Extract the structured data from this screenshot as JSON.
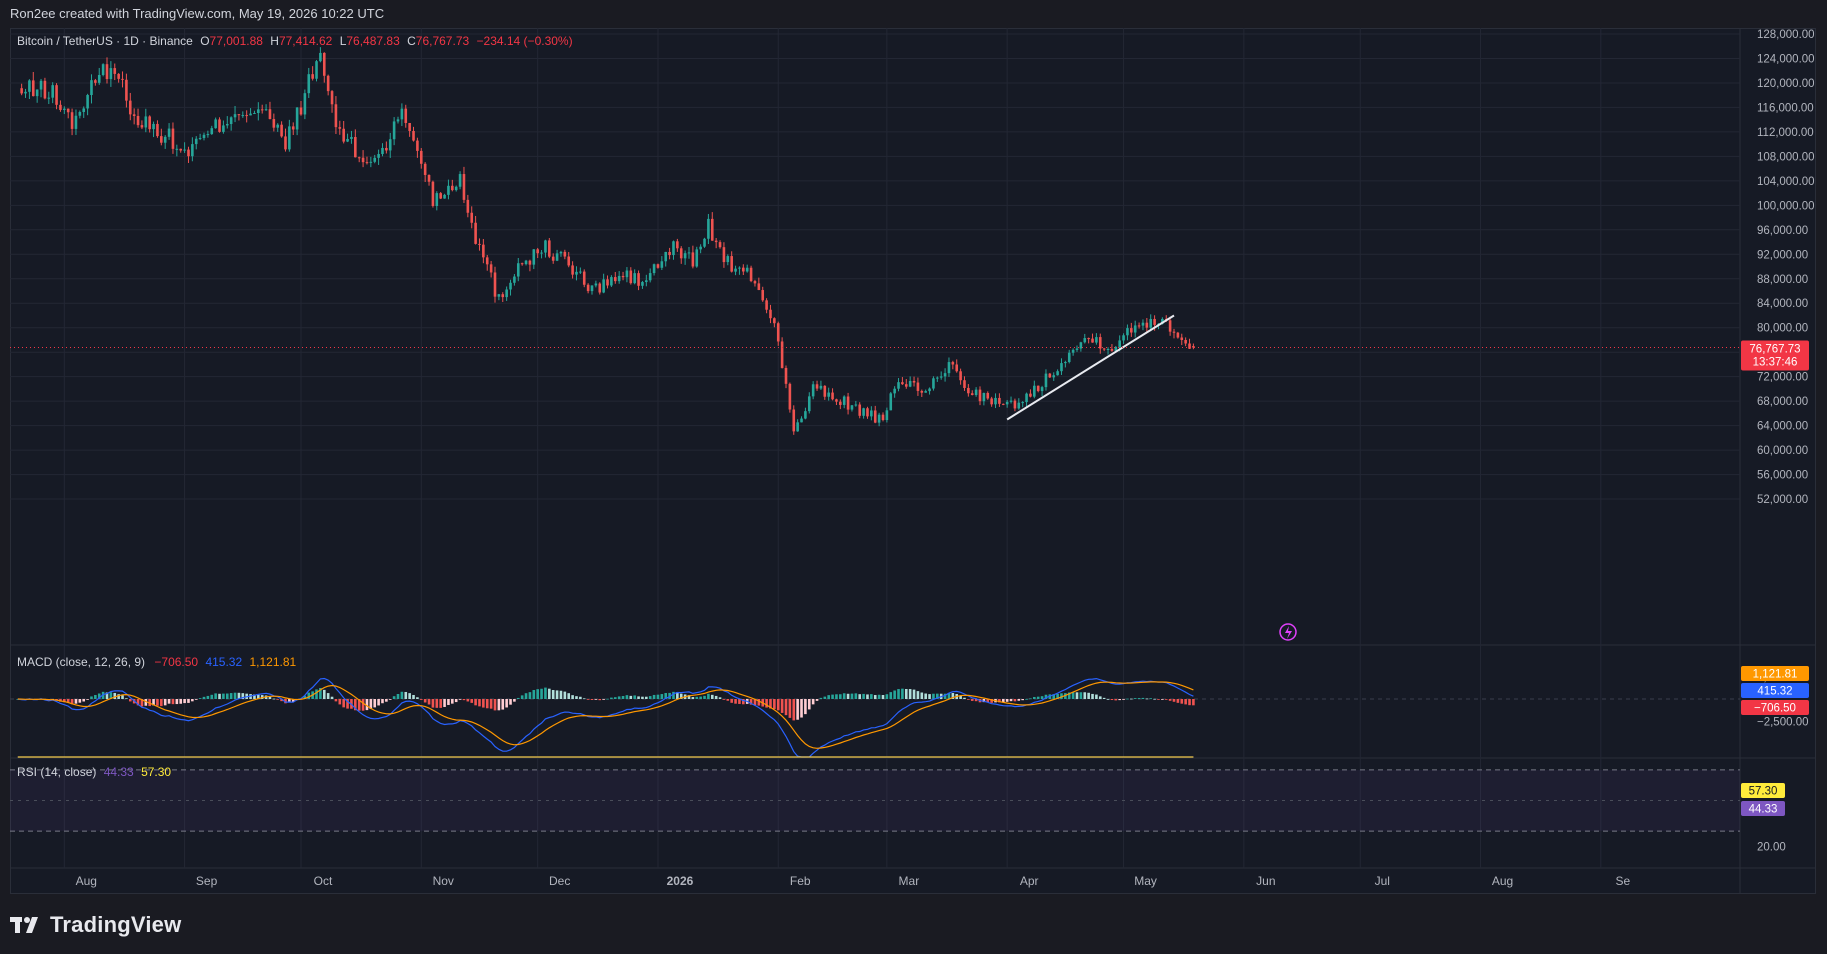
{
  "attribution": "Ron2ee created with TradingView.com, May 19, 2026 10:22 UTC",
  "brand": "TradingView",
  "legend": {
    "symbol": "Bitcoin / TetherUS · 1D · Binance",
    "o_label": "O",
    "o_value": "77,001.88",
    "h_label": "H",
    "h_value": "77,414.62",
    "l_label": "L",
    "l_value": "76,487.83",
    "c_label": "C",
    "c_value": "76,767.73",
    "change": "−234.14 (−0.30%)"
  },
  "macd_legend": {
    "label": "MACD (close, 12, 26, 9)",
    "hist": "−706.50",
    "macd": "415.32",
    "signal": "1,121.81"
  },
  "rsi_legend": {
    "label": "RSI (14, close)",
    "rsi": "44.33",
    "ma": "57.30"
  },
  "price_label": {
    "value": "76,767.73",
    "countdown": "13:37:46"
  },
  "macd_badges": [
    "1,121.81",
    "415.32",
    "−706.50"
  ],
  "rsi_badges": [
    "57.30",
    "44.33"
  ],
  "colors": {
    "up": "#26a69a",
    "down": "#ef5350",
    "background": "#161a25",
    "macd_line": "#2962ff",
    "signal_line": "#ff9800",
    "rsi_line": "#7e57c2",
    "rsi_ma": "#f2c94c",
    "trendline": "#e8eaf0",
    "price_badge": "#f23645"
  },
  "chart_data": [
    {
      "type": "candlestick",
      "title": "Bitcoin / TetherUS · 1D · Binance",
      "timeframe": "1D",
      "ylim": [
        50000,
        128000
      ],
      "y_ticks": [
        "128,000.00",
        "124,000.00",
        "120,000.00",
        "116,000.00",
        "112,000.00",
        "108,000.00",
        "104,000.00",
        "100,000.00",
        "96,000.00",
        "92,000.00",
        "88,000.00",
        "84,000.00",
        "80,000.00",
        "76,000.00",
        "72,000.00",
        "68,000.00",
        "64,000.00",
        "60,000.00",
        "56,000.00",
        "52,000.00"
      ],
      "x_ticks": [
        "Aug",
        "Sep",
        "Oct",
        "Nov",
        "Dec",
        "2026",
        "Feb",
        "Mar",
        "Apr",
        "May",
        "Jun",
        "Jul",
        "Aug",
        "Se"
      ],
      "price_path": [
        [
          "2025-07-20",
          118500
        ],
        [
          "2025-07-28",
          119000
        ],
        [
          "2025-08-03",
          113500
        ],
        [
          "2025-08-10",
          121000
        ],
        [
          "2025-08-13",
          123000
        ],
        [
          "2025-08-20",
          114000
        ],
        [
          "2025-08-27",
          111500
        ],
        [
          "2025-09-01",
          108500
        ],
        [
          "2025-09-08",
          112000
        ],
        [
          "2025-09-14",
          115500
        ],
        [
          "2025-09-21",
          115500
        ],
        [
          "2025-09-27",
          110000
        ],
        [
          "2025-10-01",
          116500
        ],
        [
          "2025-10-06",
          124500
        ],
        [
          "2025-10-10",
          113000
        ],
        [
          "2025-10-17",
          107000
        ],
        [
          "2025-10-22",
          109000
        ],
        [
          "2025-10-27",
          115000
        ],
        [
          "2025-10-31",
          109500
        ],
        [
          "2025-11-04",
          101000
        ],
        [
          "2025-11-11",
          104500
        ],
        [
          "2025-11-15",
          95000
        ],
        [
          "2025-11-21",
          84500
        ],
        [
          "2025-11-26",
          90500
        ],
        [
          "2025-12-03",
          93000
        ],
        [
          "2025-12-08",
          91000
        ],
        [
          "2025-12-15",
          86000
        ],
        [
          "2025-12-22",
          88500
        ],
        [
          "2025-12-28",
          87500
        ],
        [
          "2026-01-05",
          93000
        ],
        [
          "2026-01-10",
          91000
        ],
        [
          "2026-01-14",
          96500
        ],
        [
          "2026-01-20",
          89500
        ],
        [
          "2026-01-26",
          88000
        ],
        [
          "2026-02-01",
          78500
        ],
        [
          "2026-02-05",
          62500
        ],
        [
          "2026-02-10",
          70000
        ],
        [
          "2026-02-16",
          68500
        ],
        [
          "2026-02-22",
          66500
        ],
        [
          "2026-02-28",
          64500
        ],
        [
          "2026-03-04",
          72000
        ],
        [
          "2026-03-10",
          69000
        ],
        [
          "2026-03-17",
          74000
        ],
        [
          "2026-03-22",
          70000
        ],
        [
          "2026-03-28",
          68000
        ],
        [
          "2026-04-01",
          67000
        ],
        [
          "2026-04-07",
          69000
        ],
        [
          "2026-04-14",
          74000
        ],
        [
          "2026-04-22",
          78500
        ],
        [
          "2026-04-28",
          77000
        ],
        [
          "2026-05-04",
          80000
        ],
        [
          "2026-05-08",
          81500
        ],
        [
          "2026-05-12",
          81000
        ],
        [
          "2026-05-15",
          79000
        ],
        [
          "2026-05-19",
          76767.73
        ]
      ],
      "trendline": {
        "from": [
          "2026-04-01",
          65000
        ],
        "to": [
          "2026-05-14",
          82000
        ]
      },
      "last": {
        "open": 77001.88,
        "high": 77414.62,
        "low": 76487.83,
        "close": 76767.73,
        "change": -234.14,
        "change_pct": -0.3
      }
    },
    {
      "type": "macd",
      "params": [
        12,
        26,
        9
      ],
      "y_ticks": [
        "2,500.00",
        "−2,500.00"
      ],
      "last": {
        "histogram": -706.5,
        "macd": 415.32,
        "signal": 1121.81
      }
    },
    {
      "type": "rsi",
      "period": 14,
      "y_ticks": [
        "20.00"
      ],
      "bands": [
        70,
        30
      ],
      "last": {
        "rsi": 44.33,
        "ma": 57.3
      }
    }
  ]
}
